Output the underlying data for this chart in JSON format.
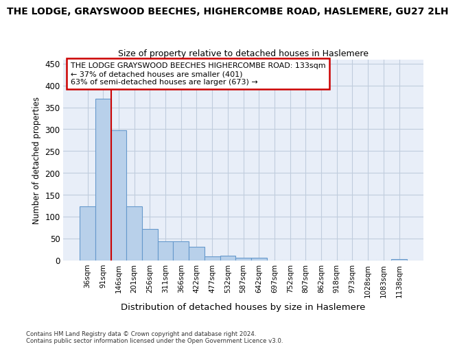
{
  "title1": "THE LODGE, GRAYSWOOD BEECHES, HIGHERCOMBE ROAD, HASLEMERE, GU27 2LH",
  "title2": "Size of property relative to detached houses in Haslemere",
  "xlabel": "Distribution of detached houses by size in Haslemere",
  "ylabel": "Number of detached properties",
  "bar_labels": [
    "36sqm",
    "91sqm",
    "146sqm",
    "201sqm",
    "256sqm",
    "311sqm",
    "366sqm",
    "422sqm",
    "477sqm",
    "532sqm",
    "587sqm",
    "642sqm",
    "697sqm",
    "752sqm",
    "807sqm",
    "862sqm",
    "918sqm",
    "973sqm",
    "1028sqm",
    "1083sqm",
    "1138sqm"
  ],
  "bar_values": [
    124,
    370,
    297,
    124,
    71,
    44,
    44,
    30,
    9,
    10,
    6,
    6,
    0,
    0,
    0,
    0,
    0,
    0,
    0,
    0,
    2
  ],
  "bar_color": "#b8d0ea",
  "bar_edge_color": "#6699cc",
  "ylim": [
    0,
    460
  ],
  "yticks": [
    0,
    50,
    100,
    150,
    200,
    250,
    300,
    350,
    400,
    450
  ],
  "vline_x": 1.5,
  "vline_color": "#cc0000",
  "annotation_title": "THE LODGE GRAYSWOOD BEECHES HIGHERCOMBE ROAD: 133sqm",
  "annotation_line2": "← 37% of detached houses are smaller (401)",
  "annotation_line3": "63% of semi-detached houses are larger (673) →",
  "annotation_box_color": "#cc0000",
  "footer1": "Contains HM Land Registry data © Crown copyright and database right 2024.",
  "footer2": "Contains public sector information licensed under the Open Government Licence v3.0.",
  "bg_color": "#ffffff",
  "plot_bg_color": "#e8eef8",
  "grid_color": "#c0ccdd"
}
